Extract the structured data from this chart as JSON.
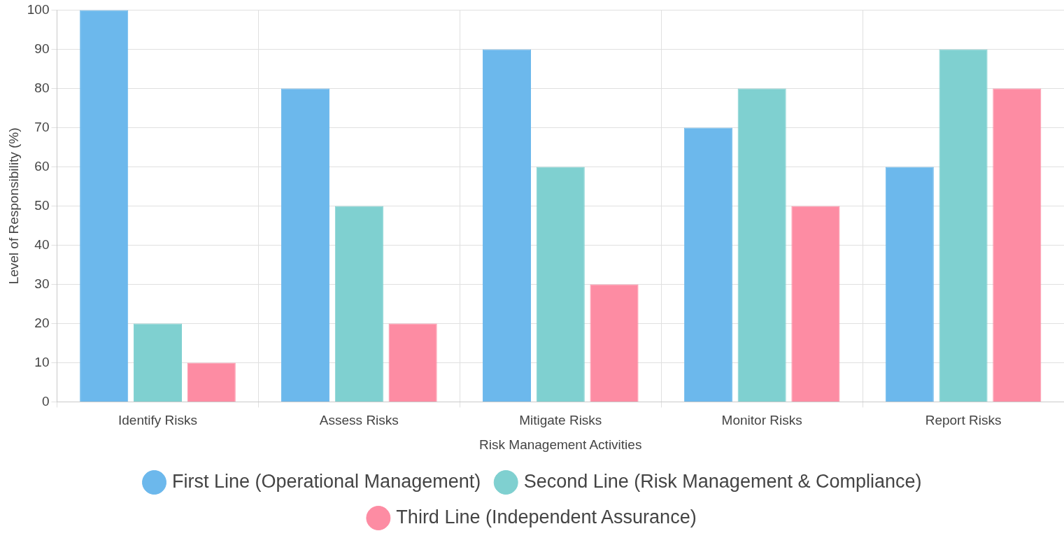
{
  "chart_data": {
    "type": "bar",
    "xlabel": "Risk Management Activities",
    "ylabel": "Level of Responsibility (%)",
    "categories": [
      "Identify Risks",
      "Assess Risks",
      "Mitigate Risks",
      "Monitor Risks",
      "Report Risks"
    ],
    "series": [
      {
        "name": "First Line (Operational Management)",
        "color": "#6cb8ec",
        "values": [
          100,
          80,
          90,
          70,
          60
        ]
      },
      {
        "name": "Second Line (Risk Management & Compliance)",
        "color": "#7fd0d0",
        "values": [
          20,
          50,
          60,
          80,
          90
        ]
      },
      {
        "name": "Third Line (Independent Assurance)",
        "color": "#fd8ca3",
        "values": [
          10,
          20,
          30,
          50,
          80
        ]
      }
    ],
    "ylim": [
      0,
      100
    ],
    "yticks": [
      0,
      10,
      20,
      30,
      40,
      50,
      60,
      70,
      80,
      90,
      100
    ],
    "grid": true,
    "legend": "bottom"
  }
}
